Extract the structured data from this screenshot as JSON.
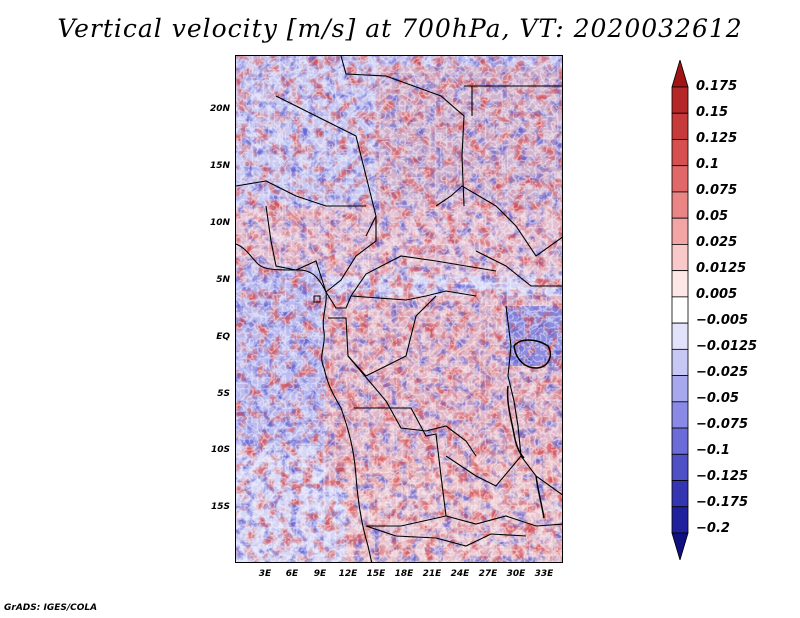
{
  "title": "Vertical velocity [m/s] at 700hPa, VT: 2020032612",
  "credit": "GrADS: IGES/COLA",
  "map": {
    "region": "Central Africa",
    "lat_labels": [
      "20N",
      "15N",
      "10N",
      "5N",
      "EQ",
      "5S",
      "10S",
      "15S"
    ],
    "lon_labels": [
      "3E",
      "6E",
      "9E",
      "12E",
      "15E",
      "18E",
      "21E",
      "24E",
      "27E",
      "30E",
      "33E"
    ]
  },
  "colorbar": {
    "labels": [
      "0.175",
      "0.15",
      "0.125",
      "0.1",
      "0.075",
      "0.05",
      "0.025",
      "0.0125",
      "0.005",
      "−0.005",
      "−0.0125",
      "−0.025",
      "−0.05",
      "−0.075",
      "−0.1",
      "−0.125",
      "−0.175",
      "−0.2"
    ],
    "colors": [
      "#a01414",
      "#b42828",
      "#c63a3a",
      "#d65050",
      "#e06868",
      "#ea8585",
      "#f3a5a5",
      "#f9c8c8",
      "#fde6e6",
      "#ffffff",
      "#e2e2fb",
      "#c8c8f5",
      "#a8a8ef",
      "#8a8ae6",
      "#6c6cd8",
      "#4f4fc6",
      "#3535b2",
      "#20209c",
      "#101080"
    ]
  }
}
